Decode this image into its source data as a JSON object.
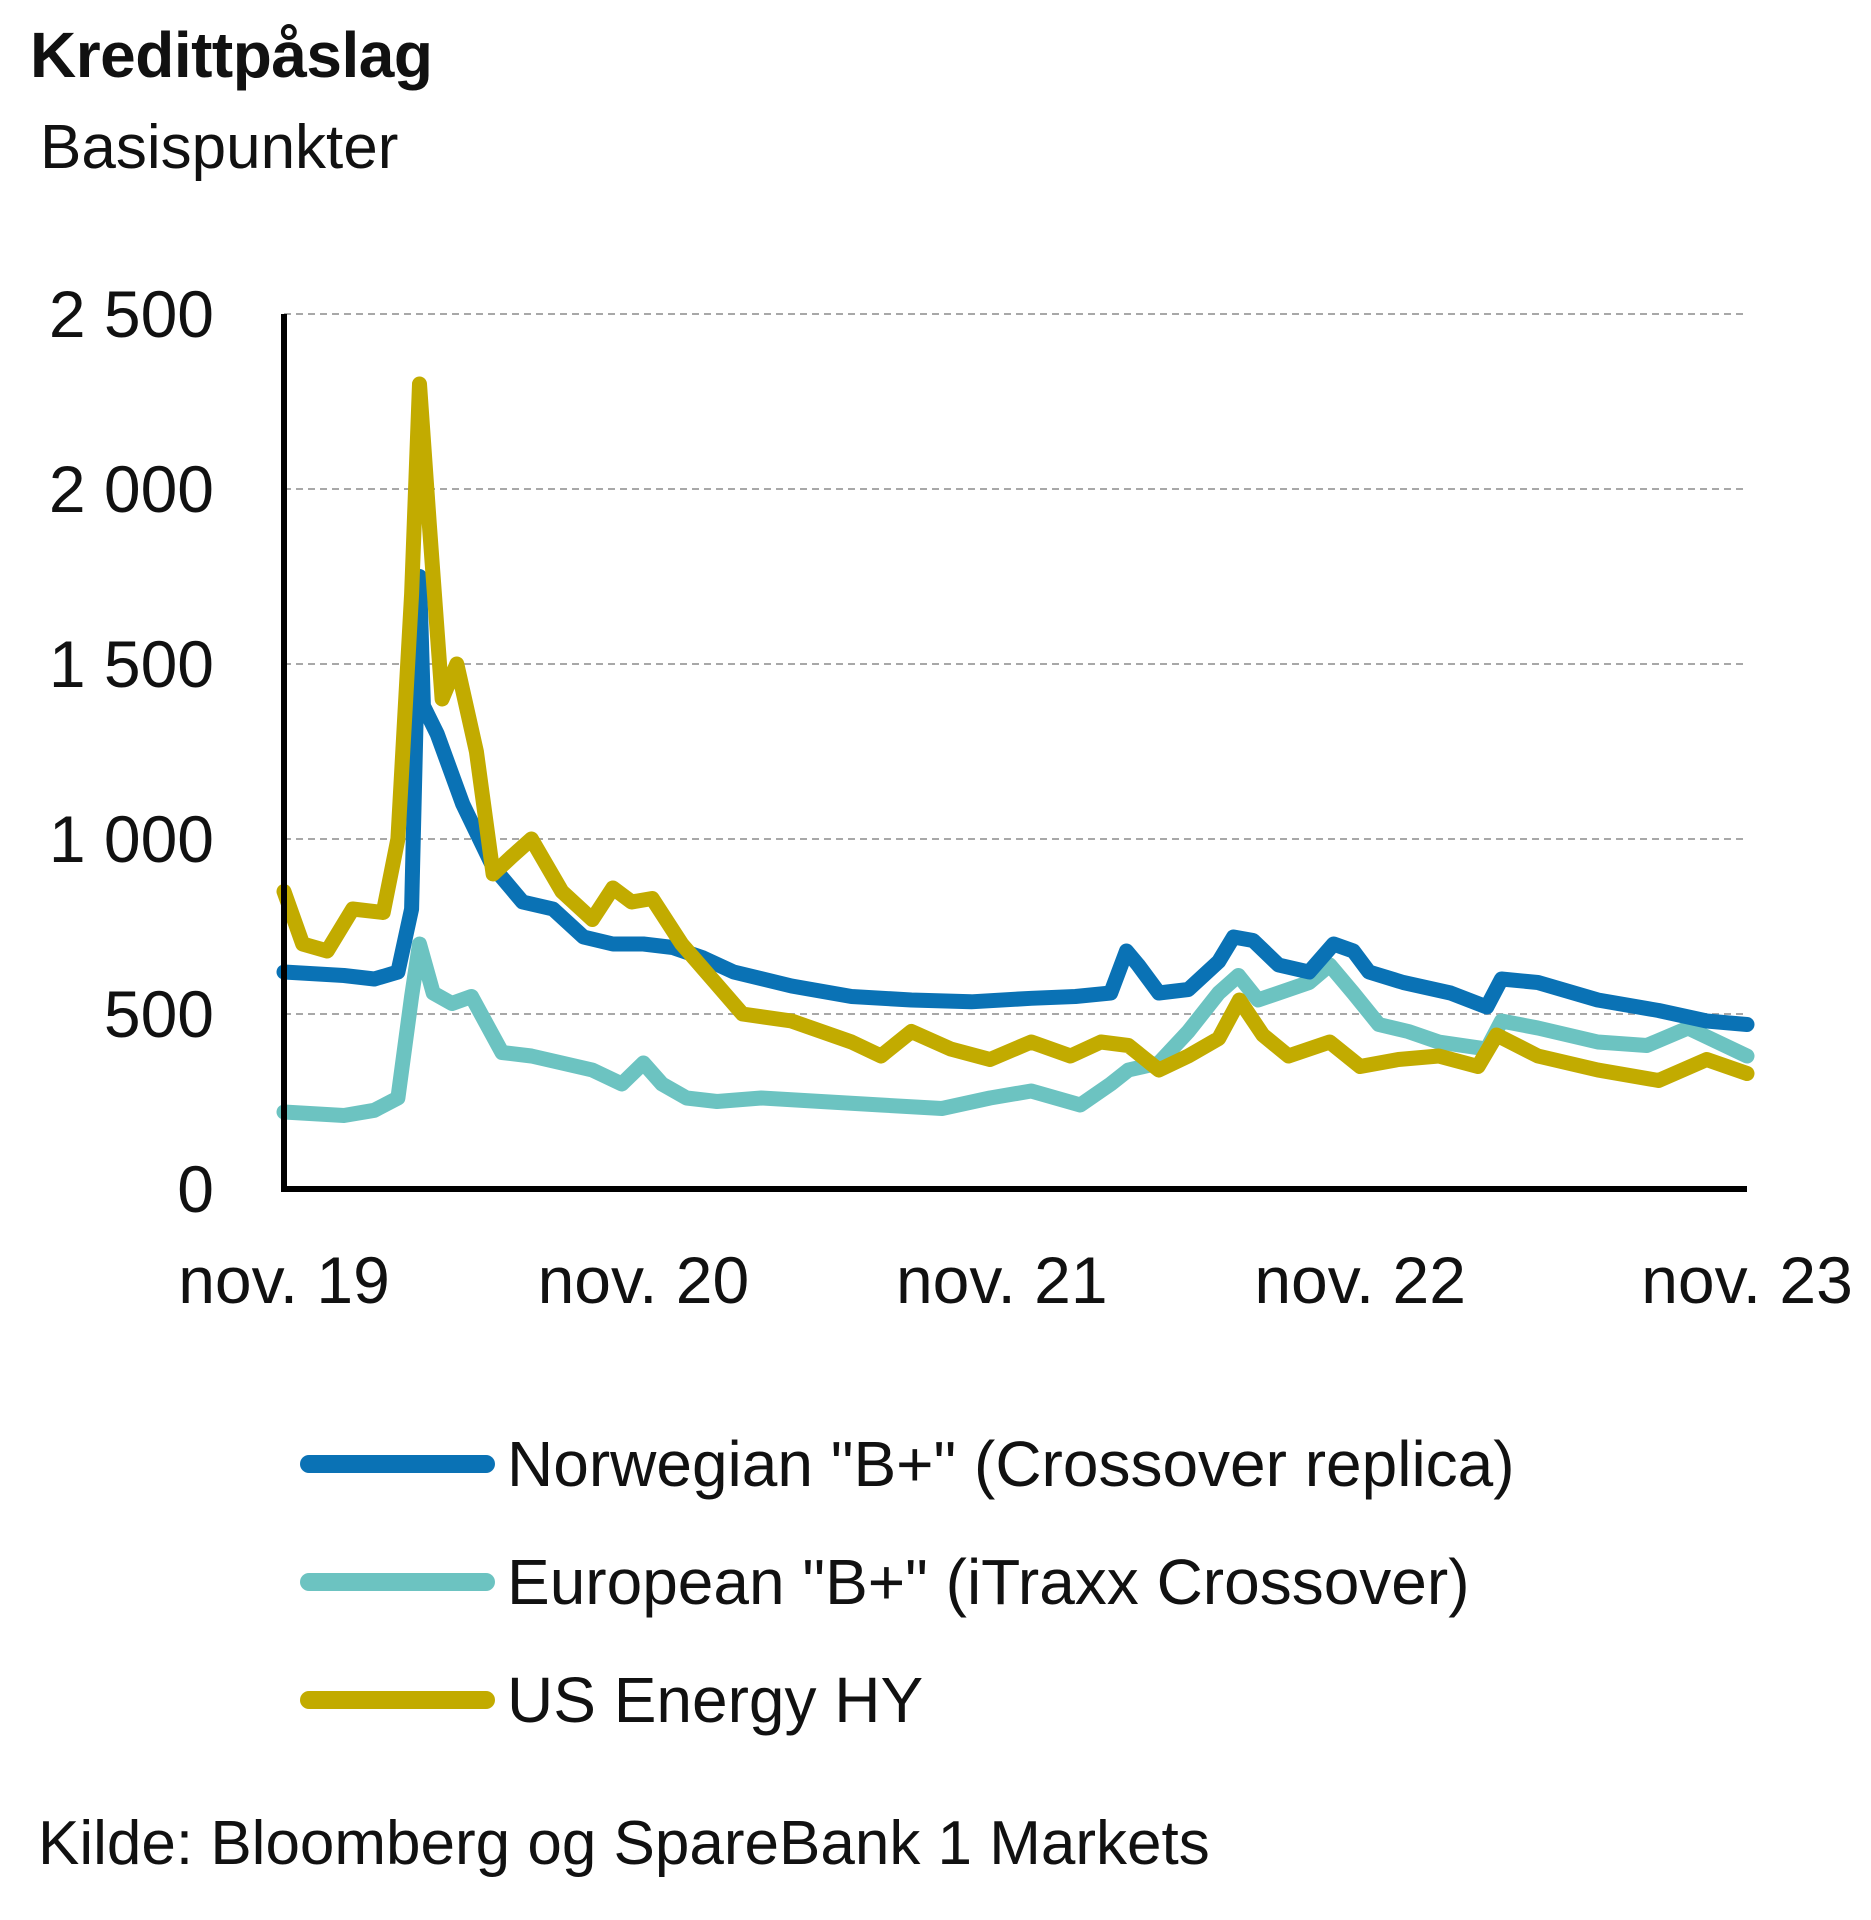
{
  "header": {
    "title": "Kredittpåslag",
    "subtitle": "Basispunkter"
  },
  "source": "Kilde: Bloomberg og SpareBank 1 Markets",
  "colors": {
    "norwegian": "#0a72b5",
    "european": "#6cc3c1",
    "us_energy": "#c2ab00",
    "axis": "#000000",
    "grid": "#a8a8a8"
  },
  "chart_data": {
    "type": "line",
    "title": "Kredittpåslag",
    "ylabel": "Basispunkter",
    "ylim": [
      0,
      2500
    ],
    "y_ticks": [
      "0",
      "500",
      "1 000",
      "1 500",
      "2 000",
      "2 500"
    ],
    "y_tick_values": [
      0,
      500,
      1000,
      1500,
      2000,
      2500
    ],
    "x_ticks": [
      "nov. 19",
      "nov. 20",
      "nov. 21",
      "nov. 22",
      "nov. 23"
    ],
    "x_range": [
      "2019-11",
      "2023-11"
    ],
    "grid": true,
    "legend_position": "bottom",
    "series": [
      {
        "name": "Norwegian \"B+\" (Crossover replica)",
        "color_key": "norwegian",
        "points": [
          [
            "2019-11-01",
            620
          ],
          [
            "2020-01-01",
            610
          ],
          [
            "2020-02-01",
            600
          ],
          [
            "2020-02-25",
            620
          ],
          [
            "2020-03-10",
            800
          ],
          [
            "2020-03-18",
            1750
          ],
          [
            "2020-03-22",
            1380
          ],
          [
            "2020-04-05",
            1300
          ],
          [
            "2020-05-01",
            1100
          ],
          [
            "2020-06-01",
            920
          ],
          [
            "2020-07-01",
            820
          ],
          [
            "2020-08-01",
            800
          ],
          [
            "2020-09-01",
            720
          ],
          [
            "2020-10-01",
            700
          ],
          [
            "2020-11-01",
            700
          ],
          [
            "2020-12-01",
            690
          ],
          [
            "2021-01-01",
            660
          ],
          [
            "2021-02-01",
            620
          ],
          [
            "2021-04-01",
            580
          ],
          [
            "2021-06-01",
            550
          ],
          [
            "2021-08-01",
            540
          ],
          [
            "2021-10-01",
            535
          ],
          [
            "2021-12-01",
            545
          ],
          [
            "2022-01-15",
            550
          ],
          [
            "2022-02-20",
            560
          ],
          [
            "2022-03-08",
            680
          ],
          [
            "2022-03-20",
            640
          ],
          [
            "2022-04-10",
            560
          ],
          [
            "2022-05-10",
            570
          ],
          [
            "2022-06-10",
            650
          ],
          [
            "2022-06-25",
            720
          ],
          [
            "2022-07-15",
            710
          ],
          [
            "2022-08-10",
            640
          ],
          [
            "2022-09-10",
            620
          ],
          [
            "2022-10-05",
            700
          ],
          [
            "2022-10-25",
            680
          ],
          [
            "2022-11-10",
            620
          ],
          [
            "2022-12-15",
            590
          ],
          [
            "2023-02-01",
            560
          ],
          [
            "2023-03-10",
            520
          ],
          [
            "2023-03-25",
            600
          ],
          [
            "2023-05-01",
            590
          ],
          [
            "2023-07-01",
            540
          ],
          [
            "2023-09-01",
            510
          ],
          [
            "2023-10-20",
            480
          ],
          [
            "2023-11-30",
            470
          ]
        ]
      },
      {
        "name": "European \"B+\" (iTraxx Crossover)",
        "color_key": "european",
        "points": [
          [
            "2019-11-01",
            220
          ],
          [
            "2020-01-01",
            210
          ],
          [
            "2020-02-01",
            225
          ],
          [
            "2020-02-25",
            260
          ],
          [
            "2020-03-10",
            550
          ],
          [
            "2020-03-18",
            700
          ],
          [
            "2020-04-01",
            560
          ],
          [
            "2020-04-20",
            530
          ],
          [
            "2020-05-10",
            550
          ],
          [
            "2020-06-10",
            390
          ],
          [
            "2020-07-10",
            380
          ],
          [
            "2020-08-10",
            360
          ],
          [
            "2020-09-10",
            340
          ],
          [
            "2020-10-10",
            300
          ],
          [
            "2020-11-01",
            360
          ],
          [
            "2020-11-20",
            300
          ],
          [
            "2020-12-15",
            260
          ],
          [
            "2021-01-15",
            250
          ],
          [
            "2021-03-01",
            260
          ],
          [
            "2021-05-01",
            250
          ],
          [
            "2021-07-01",
            240
          ],
          [
            "2021-09-01",
            230
          ],
          [
            "2021-10-20",
            260
          ],
          [
            "2021-12-01",
            280
          ],
          [
            "2022-01-20",
            240
          ],
          [
            "2022-02-20",
            300
          ],
          [
            "2022-03-10",
            340
          ],
          [
            "2022-04-10",
            360
          ],
          [
            "2022-05-10",
            450
          ],
          [
            "2022-06-10",
            560
          ],
          [
            "2022-06-30",
            610
          ],
          [
            "2022-07-20",
            540
          ],
          [
            "2022-08-10",
            560
          ],
          [
            "2022-09-10",
            590
          ],
          [
            "2022-10-01",
            640
          ],
          [
            "2022-10-25",
            560
          ],
          [
            "2022-11-20",
            470
          ],
          [
            "2022-12-20",
            450
          ],
          [
            "2023-01-20",
            420
          ],
          [
            "2023-03-10",
            400
          ],
          [
            "2023-03-25",
            480
          ],
          [
            "2023-05-01",
            460
          ],
          [
            "2023-07-01",
            420
          ],
          [
            "2023-08-20",
            410
          ],
          [
            "2023-10-01",
            460
          ],
          [
            "2023-11-30",
            380
          ]
        ]
      },
      {
        "name": "US Energy HY",
        "color_key": "us_energy",
        "points": [
          [
            "2019-11-01",
            850
          ],
          [
            "2019-11-20",
            700
          ],
          [
            "2019-12-15",
            680
          ],
          [
            "2020-01-10",
            800
          ],
          [
            "2020-02-10",
            790
          ],
          [
            "2020-02-25",
            1000
          ],
          [
            "2020-03-10",
            1700
          ],
          [
            "2020-03-18",
            2300
          ],
          [
            "2020-03-28",
            1900
          ],
          [
            "2020-04-10",
            1400
          ],
          [
            "2020-04-25",
            1500
          ],
          [
            "2020-05-15",
            1250
          ],
          [
            "2020-06-01",
            900
          ],
          [
            "2020-06-20",
            950
          ],
          [
            "2020-07-10",
            1000
          ],
          [
            "2020-08-10",
            850
          ],
          [
            "2020-09-10",
            770
          ],
          [
            "2020-10-01",
            860
          ],
          [
            "2020-10-20",
            820
          ],
          [
            "2020-11-10",
            830
          ],
          [
            "2020-12-10",
            700
          ],
          [
            "2021-01-10",
            600
          ],
          [
            "2021-02-10",
            500
          ],
          [
            "2021-04-01",
            480
          ],
          [
            "2021-06-01",
            420
          ],
          [
            "2021-07-01",
            380
          ],
          [
            "2021-08-01",
            450
          ],
          [
            "2021-09-10",
            400
          ],
          [
            "2021-10-20",
            370
          ],
          [
            "2021-12-01",
            420
          ],
          [
            "2022-01-10",
            380
          ],
          [
            "2022-02-10",
            420
          ],
          [
            "2022-03-10",
            410
          ],
          [
            "2022-04-10",
            340
          ],
          [
            "2022-05-10",
            380
          ],
          [
            "2022-06-10",
            430
          ],
          [
            "2022-07-01",
            540
          ],
          [
            "2022-07-25",
            440
          ],
          [
            "2022-08-20",
            380
          ],
          [
            "2022-10-01",
            420
          ],
          [
            "2022-11-01",
            350
          ],
          [
            "2022-12-10",
            370
          ],
          [
            "2023-01-20",
            380
          ],
          [
            "2023-03-01",
            350
          ],
          [
            "2023-03-20",
            440
          ],
          [
            "2023-05-01",
            380
          ],
          [
            "2023-07-01",
            340
          ],
          [
            "2023-09-01",
            310
          ],
          [
            "2023-10-20",
            370
          ],
          [
            "2023-11-30",
            330
          ]
        ]
      }
    ]
  }
}
